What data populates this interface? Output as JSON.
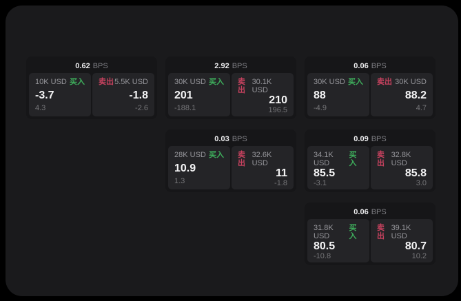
{
  "labels": {
    "bps": "BPS",
    "buy": "买入",
    "sell": "卖出"
  },
  "colors": {
    "buy": "#3eae5c",
    "sell": "#c7425f",
    "surface": "#1a1a1c",
    "card": "#161618",
    "panel": "#242427"
  },
  "cards": [
    {
      "bps": "0.62",
      "buy": {
        "amount": "10K USD",
        "value": "-3.7",
        "change": "4.3"
      },
      "sell": {
        "amount": "5.5K USD",
        "value": "-1.8",
        "change": "-2.6"
      }
    },
    {
      "bps": "2.92",
      "buy": {
        "amount": "30K USD",
        "value": "201",
        "change": "-188.1"
      },
      "sell": {
        "amount": "30.1K USD",
        "value": "210",
        "change": "196.5"
      }
    },
    {
      "bps": "0.06",
      "buy": {
        "amount": "30K USD",
        "value": "88",
        "change": "-4.9"
      },
      "sell": {
        "amount": "30K USD",
        "value": "88.2",
        "change": "4.7"
      }
    },
    {
      "bps": "0.03",
      "buy": {
        "amount": "28K USD",
        "value": "10.9",
        "change": "1.3"
      },
      "sell": {
        "amount": "32.6K USD",
        "value": "11",
        "change": "-1.8"
      }
    },
    {
      "bps": "0.09",
      "buy": {
        "amount": "34.1K USD",
        "value": "85.5",
        "change": "-3.1"
      },
      "sell": {
        "amount": "32.8K USD",
        "value": "85.8",
        "change": "3.0"
      }
    },
    {
      "bps": "0.06",
      "buy": {
        "amount": "31.8K USD",
        "value": "80.5",
        "change": "-10.8"
      },
      "sell": {
        "amount": "39.1K USD",
        "value": "80.7",
        "change": "10.2"
      }
    }
  ]
}
